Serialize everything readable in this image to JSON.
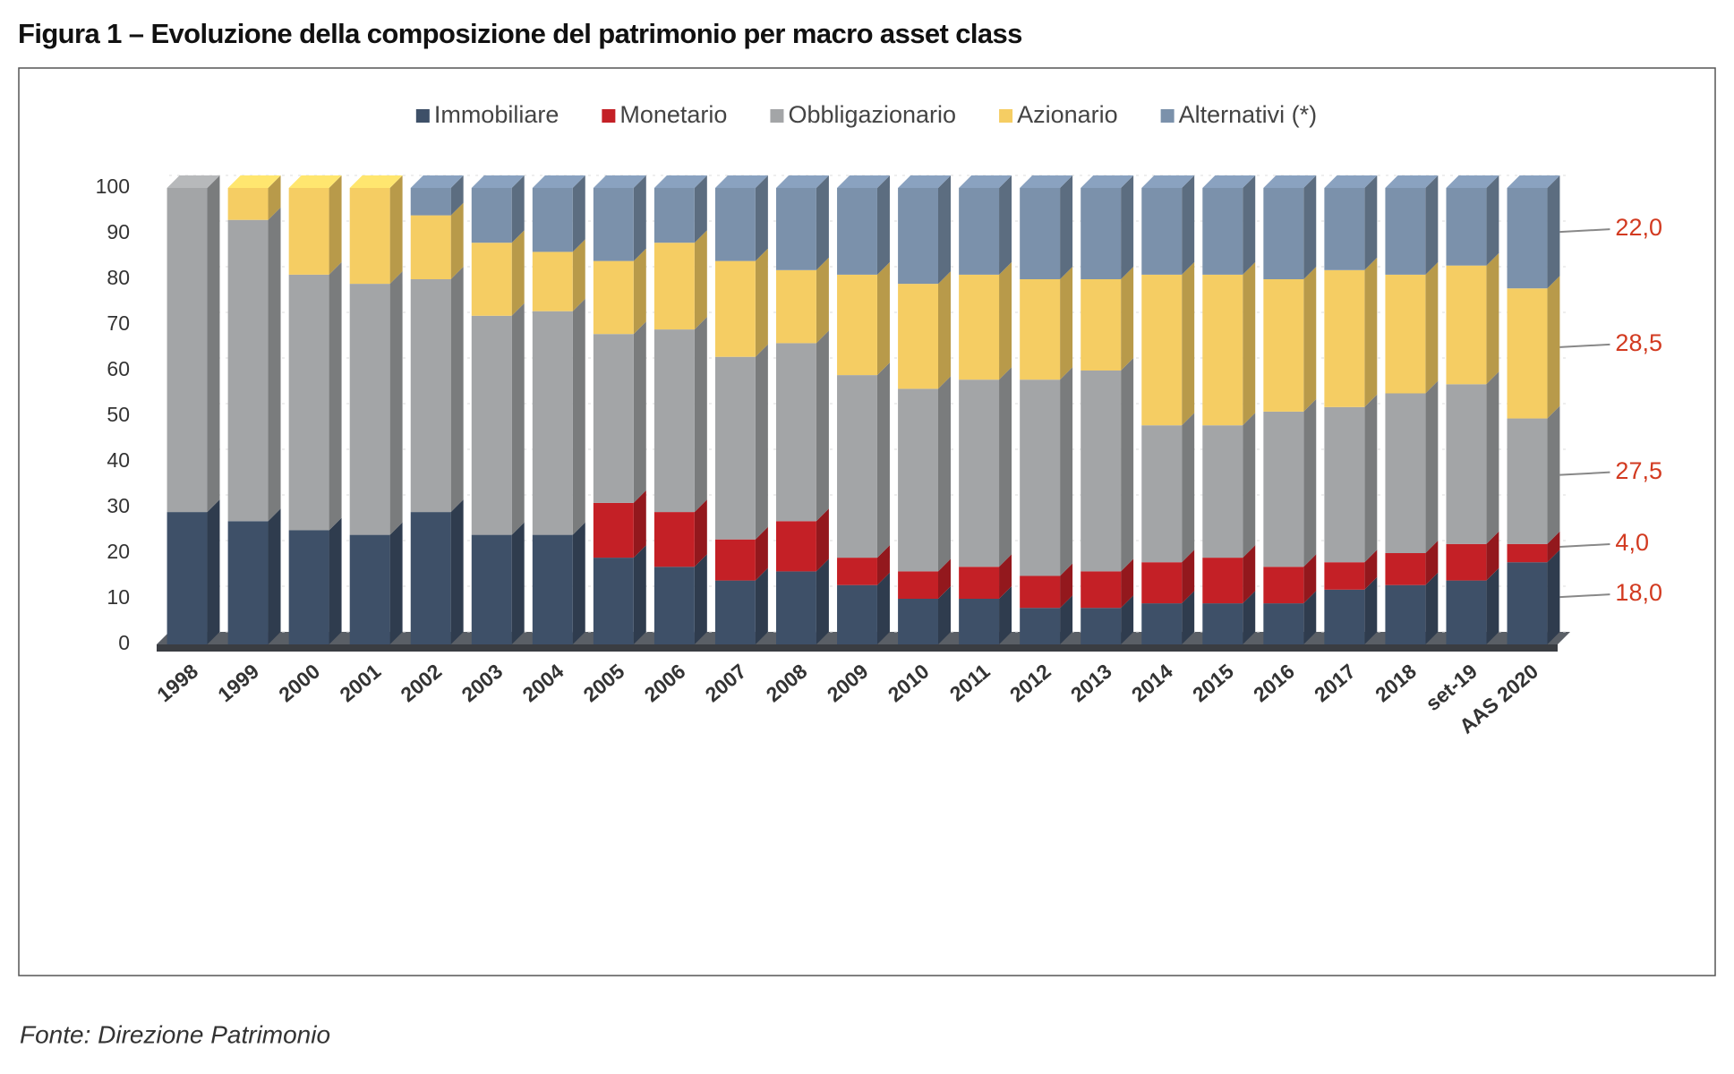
{
  "chart_data": {
    "type": "bar3d-stacked",
    "title": "Figura 1 – Evoluzione della composizione del patrimonio per macro asset class",
    "source": "Fonte: Direzione Patrimonio",
    "categories": [
      "1998",
      "1999",
      "2000",
      "2001",
      "2002",
      "2003",
      "2004",
      "2005",
      "2006",
      "2007",
      "2008",
      "2009",
      "2010",
      "2011",
      "2012",
      "2013",
      "2014",
      "2015",
      "2016",
      "2017",
      "2018",
      "set-19",
      "AAS 2020"
    ],
    "series": [
      {
        "name": "Immobiliare",
        "color": "#3e5068",
        "values": [
          29,
          27,
          25,
          24,
          29,
          24,
          24,
          19,
          17,
          14,
          16,
          13,
          10,
          10,
          8,
          8,
          9,
          9,
          9,
          12,
          13,
          14,
          18
        ],
        "value_labels": [
          null,
          null,
          null,
          null,
          null,
          null,
          null,
          null,
          null,
          null,
          null,
          null,
          null,
          null,
          null,
          null,
          null,
          null,
          null,
          null,
          null,
          null,
          "18,0"
        ]
      },
      {
        "name": "Monetario",
        "color": "#c42026",
        "values": [
          0,
          0,
          0,
          0,
          0,
          0,
          0,
          12,
          12,
          9,
          11,
          6,
          6,
          7,
          7,
          8,
          9,
          10,
          8,
          6,
          7,
          8,
          4
        ],
        "value_labels": [
          null,
          null,
          null,
          null,
          null,
          null,
          null,
          null,
          null,
          null,
          null,
          null,
          null,
          null,
          null,
          null,
          null,
          null,
          null,
          null,
          null,
          null,
          "4,0"
        ]
      },
      {
        "name": "Obbligazionario",
        "color": "#a3a5a7",
        "values": [
          71,
          66,
          56,
          55,
          51,
          48,
          49,
          37,
          40,
          40,
          39,
          40,
          40,
          41,
          43,
          44,
          30,
          29,
          34,
          34,
          35,
          35,
          27.5
        ],
        "value_labels": [
          null,
          null,
          null,
          null,
          null,
          null,
          null,
          null,
          null,
          null,
          null,
          null,
          null,
          null,
          null,
          null,
          null,
          null,
          null,
          null,
          null,
          null,
          "27,5"
        ]
      },
      {
        "name": "Azionario",
        "color": "#f5cd63",
        "values": [
          0,
          7,
          19,
          21,
          14,
          16,
          13,
          16,
          19,
          21,
          16,
          22,
          23,
          23,
          22,
          20,
          33,
          33,
          29,
          30,
          26,
          26,
          28.5
        ],
        "value_labels": [
          null,
          null,
          null,
          null,
          null,
          null,
          null,
          null,
          null,
          null,
          null,
          null,
          null,
          null,
          null,
          null,
          null,
          null,
          null,
          null,
          null,
          null,
          "28,5"
        ]
      },
      {
        "name": "Alternativi (*)",
        "color": "#7b91ab",
        "values": [
          0,
          0,
          0,
          0,
          6,
          12,
          14,
          16,
          12,
          16,
          18,
          19,
          21,
          19,
          20,
          20,
          19,
          19,
          20,
          18,
          19,
          17,
          22
        ],
        "value_labels": [
          null,
          null,
          null,
          null,
          null,
          null,
          null,
          null,
          null,
          null,
          null,
          null,
          null,
          null,
          null,
          null,
          null,
          null,
          null,
          null,
          null,
          null,
          "22,0"
        ]
      }
    ],
    "ylim": [
      0,
      100
    ],
    "yticks": [
      0,
      10,
      20,
      30,
      40,
      50,
      60,
      70,
      80,
      90,
      100
    ],
    "legend": "top"
  }
}
